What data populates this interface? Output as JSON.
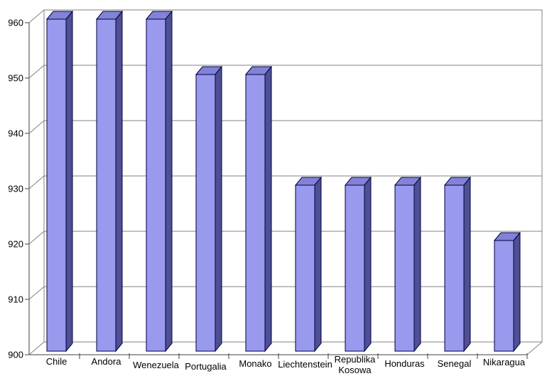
{
  "chart_data": {
    "type": "bar",
    "projection": "3d",
    "title": "",
    "xlabel": "",
    "ylabel": "",
    "categories": [
      "Chile",
      "Andora",
      "Wenezuela",
      "Portugalia",
      "Monako",
      "Liechtenstein",
      "Republika\nKosowa",
      "Honduras",
      "Senegal",
      "Nikaragua"
    ],
    "values": [
      960,
      960,
      960,
      950,
      950,
      930,
      930,
      930,
      930,
      920
    ],
    "ylim": [
      900,
      960
    ],
    "ytick_step": 10,
    "ytick_labels": [
      "900",
      "910",
      "920",
      "930",
      "940",
      "950",
      "960"
    ],
    "grid": true,
    "legend": false,
    "background": "#ffffff",
    "colors": {
      "bar_front": "#9999ee",
      "bar_top": "#8282d6",
      "bar_side": "#4f4f94",
      "bar_outline": "#000040",
      "grid_line": "#808080",
      "wall_border": "#808080",
      "axis_line": "#404040",
      "label_text": "#000000"
    }
  }
}
